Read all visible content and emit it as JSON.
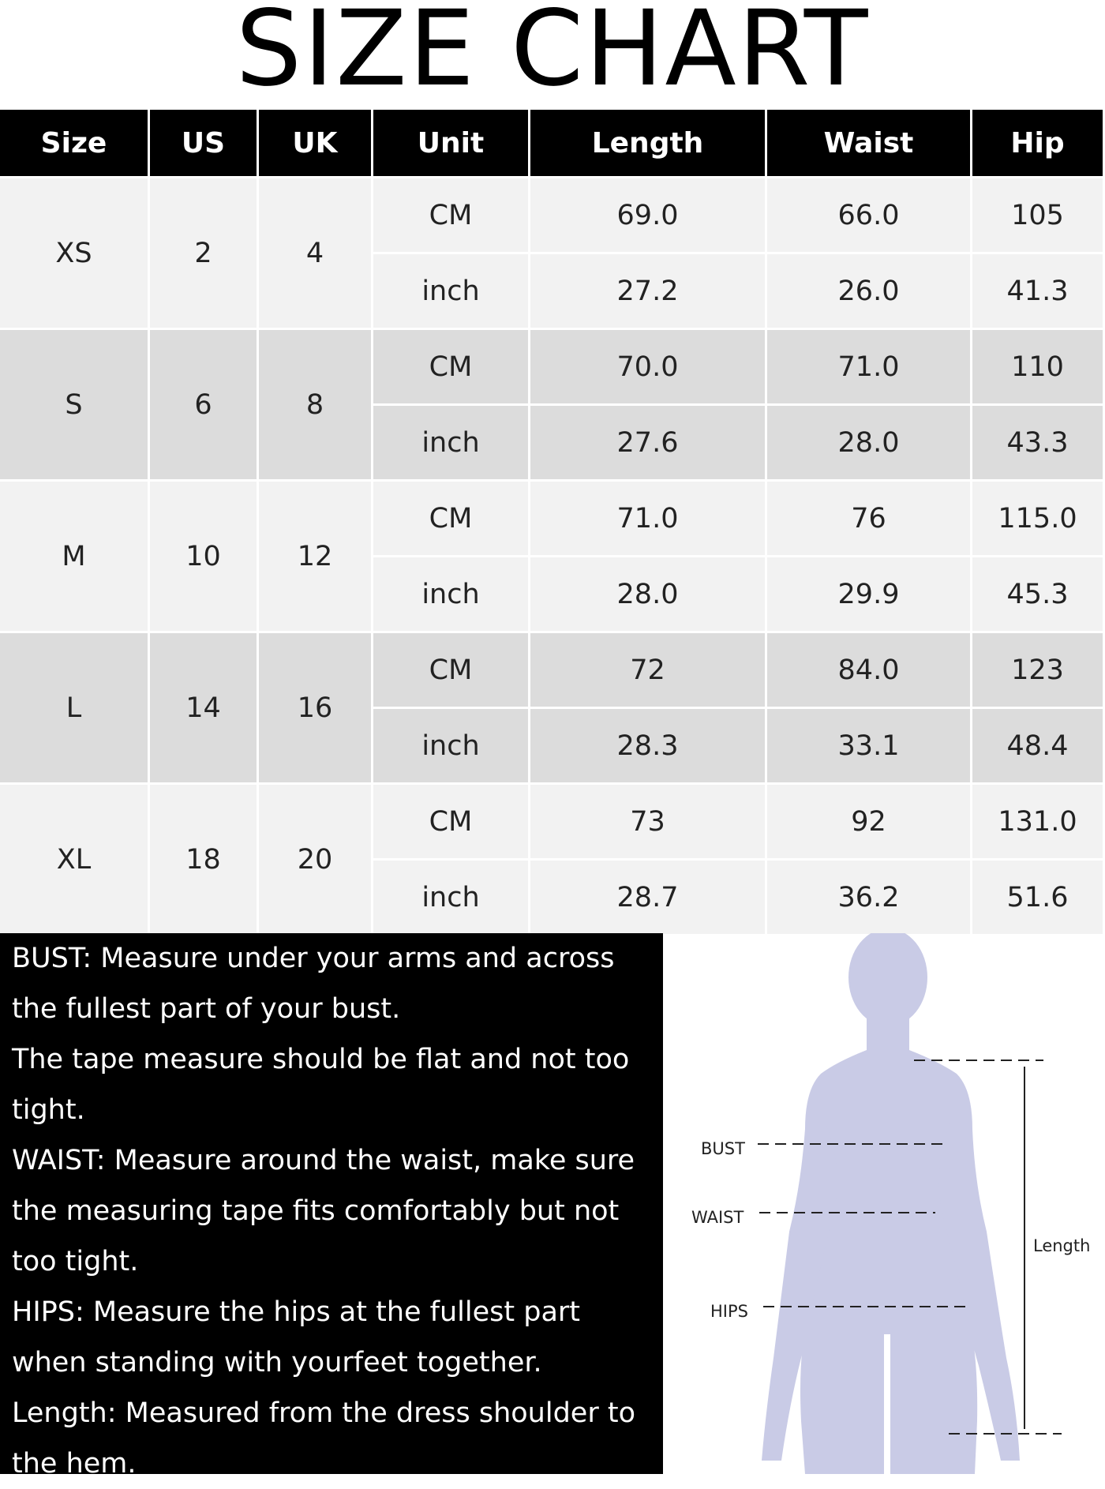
{
  "title": "SIZE CHART",
  "table": {
    "header": [
      "Size",
      "US",
      "UK",
      "Unit",
      "Length",
      "Waist",
      "Hip"
    ],
    "rows": [
      {
        "size": "XS",
        "us": "2",
        "uk": "4",
        "measurements": [
          [
            "CM",
            "69.0",
            "66.0",
            "105"
          ],
          [
            "inch",
            "27.2",
            "26.0",
            "41.3"
          ]
        ]
      },
      {
        "size": "S",
        "us": "6",
        "uk": "8",
        "measurements": [
          [
            "CM",
            "70.0",
            "71.0",
            "110"
          ],
          [
            "inch",
            "27.6",
            "28.0",
            "43.3"
          ]
        ]
      },
      {
        "size": "M",
        "us": "10",
        "uk": "12",
        "measurements": [
          [
            "CM",
            "71.0",
            "76",
            "115.0"
          ],
          [
            "inch",
            "28.0",
            "29.9",
            "45.3"
          ]
        ]
      },
      {
        "size": "L",
        "us": "14",
        "uk": "16",
        "measurements": [
          [
            "CM",
            "72",
            "84.0",
            "123"
          ],
          [
            "inch",
            "28.3",
            "33.1",
            "48.4"
          ]
        ]
      },
      {
        "size": "XL",
        "us": "18",
        "uk": "20",
        "measurements": [
          [
            "CM",
            "73",
            "92",
            "131.0"
          ],
          [
            "inch",
            "28.7",
            "36.2",
            "51.6"
          ]
        ]
      }
    ]
  },
  "notes": [
    "BUST: Measure under your arms and across",
    "the fullest part of your bust.",
    "The tape measure should be flat and not too",
    "tight.",
    "WAIST: Measure around the waist, make sure",
    "the measuring tape fits comfortably but not",
    "too tight.",
    "HIPS: Measure the hips at the fullest part",
    "when standing with yourfeet together.",
    "Length: Measured from the dress shoulder to",
    "the hem."
  ],
  "figure": {
    "bust": "BUST",
    "waist": "WAIST",
    "hips": "HIPS",
    "length": "Length"
  }
}
